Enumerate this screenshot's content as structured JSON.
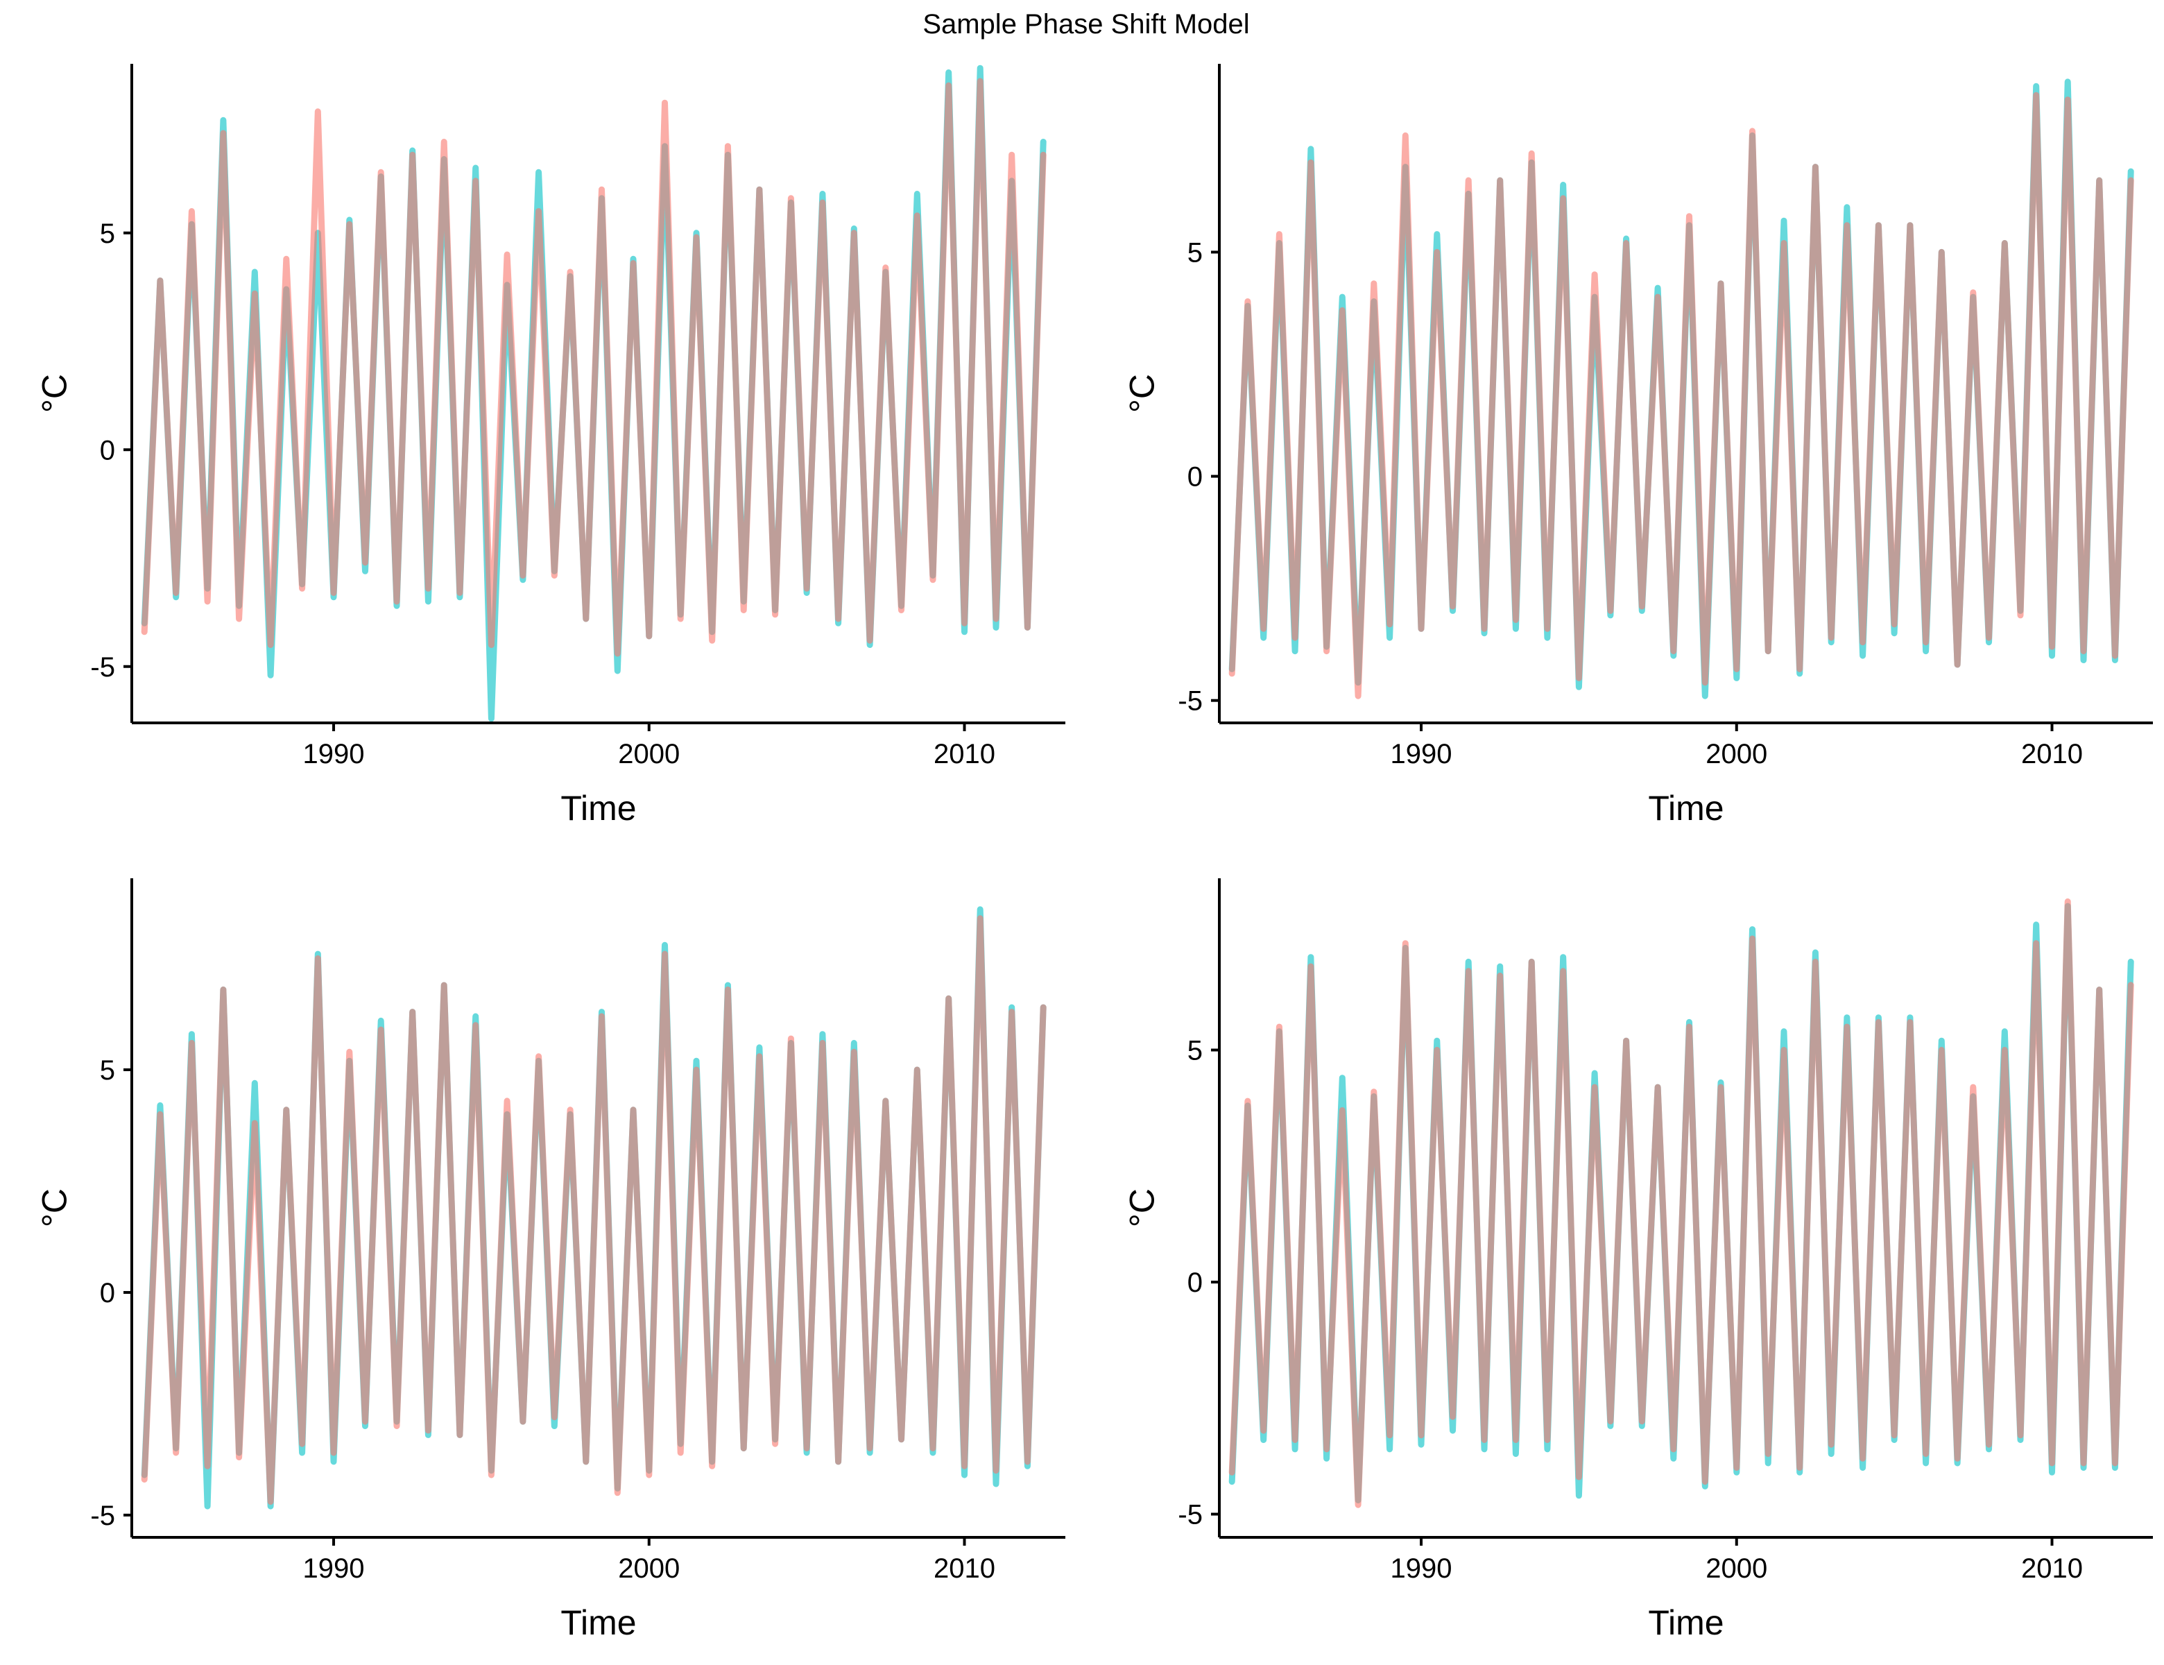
{
  "figure": {
    "title": "Sample Phase Shift Model"
  },
  "colors": {
    "observed": "#00BFC4",
    "model": "#F8766D"
  },
  "chart_data": [
    {
      "type": "line",
      "title": "",
      "xlabel": "Time",
      "ylabel": "°C",
      "xlim": [
        1983.6,
        2013.2
      ],
      "ylim": [
        -6.3,
        8.9
      ],
      "x_ticks": [
        1990,
        2000,
        2010
      ],
      "y_ticks": [
        -5,
        0,
        5
      ],
      "x_tick_labels": [
        "1990",
        "2000",
        "2010"
      ],
      "y_tick_labels": [
        "-5",
        "0",
        "5"
      ],
      "legend": "none",
      "grid": false,
      "x": [
        1984.0,
        1984.5,
        1985.0,
        1985.5,
        1986.0,
        1986.5,
        1987.0,
        1987.5,
        1988.0,
        1988.5,
        1989.0,
        1989.5,
        1990.0,
        1990.5,
        1991.0,
        1991.5,
        1992.0,
        1992.5,
        1993.0,
        1993.5,
        1994.0,
        1994.5,
        1995.0,
        1995.5,
        1996.0,
        1996.5,
        1997.0,
        1997.5,
        1998.0,
        1998.5,
        1999.0,
        1999.5,
        2000.0,
        2000.5,
        2001.0,
        2001.5,
        2002.0,
        2002.5,
        2003.0,
        2003.5,
        2004.0,
        2004.5,
        2005.0,
        2005.5,
        2006.0,
        2006.5,
        2007.0,
        2007.5,
        2008.0,
        2008.5,
        2009.0,
        2009.5,
        2010.0,
        2010.5,
        2011.0,
        2011.5,
        2012.0,
        2012.5
      ],
      "series": [
        {
          "values": [
            -4.0,
            3.9,
            -3.4,
            5.2,
            -3.2,
            7.6,
            -3.6,
            4.1,
            -5.2,
            3.7,
            -3.1,
            5.0,
            -3.4,
            5.3,
            -2.8,
            6.3,
            -3.6,
            6.9,
            -3.5,
            6.7,
            -3.4,
            6.5,
            -6.2,
            3.8,
            -3.0,
            6.4,
            -2.8,
            4.0,
            -3.9,
            5.8,
            -5.1,
            4.4,
            -4.3,
            7.0,
            -3.8,
            5.0,
            -4.2,
            6.8,
            -3.5,
            6.0,
            -3.7,
            5.7,
            -3.3,
            5.9,
            -4.0,
            5.1,
            -4.5,
            4.1,
            -3.6,
            5.9,
            -2.9,
            8.7,
            -4.2,
            8.8,
            -4.1,
            6.2,
            -4.1,
            7.1
          ]
        },
        {
          "values": [
            -4.2,
            3.9,
            -3.3,
            5.5,
            -3.5,
            7.3,
            -3.9,
            3.6,
            -4.5,
            4.4,
            -3.2,
            7.8,
            -3.3,
            5.2,
            -2.6,
            6.4,
            -3.5,
            6.8,
            -3.2,
            7.1,
            -3.3,
            6.2,
            -4.5,
            4.5,
            -2.9,
            5.5,
            -2.9,
            4.1,
            -3.9,
            6.0,
            -4.7,
            4.3,
            -4.3,
            8.0,
            -3.9,
            4.9,
            -4.4,
            7.0,
            -3.7,
            6.0,
            -3.8,
            5.8,
            -3.2,
            5.7,
            -3.9,
            5.0,
            -4.4,
            4.2,
            -3.7,
            5.4,
            -3.0,
            8.4,
            -4.0,
            8.5,
            -3.9,
            6.8,
            -4.1,
            6.8
          ]
        }
      ]
    },
    {
      "type": "line",
      "title": "",
      "xlabel": "Time",
      "ylabel": "°C",
      "xlim": [
        1983.6,
        2013.2
      ],
      "ylim": [
        -5.5,
        9.2
      ],
      "x_ticks": [
        1990,
        2000,
        2010
      ],
      "y_ticks": [
        -5,
        0,
        5
      ],
      "x_tick_labels": [
        "1990",
        "2000",
        "2010"
      ],
      "y_tick_labels": [
        "-5",
        "0",
        "5"
      ],
      "legend": "none",
      "grid": false,
      "x": [
        1984.0,
        1984.5,
        1985.0,
        1985.5,
        1986.0,
        1986.5,
        1987.0,
        1987.5,
        1988.0,
        1988.5,
        1989.0,
        1989.5,
        1990.0,
        1990.5,
        1991.0,
        1991.5,
        1992.0,
        1992.5,
        1993.0,
        1993.5,
        1994.0,
        1994.5,
        1995.0,
        1995.5,
        1996.0,
        1996.5,
        1997.0,
        1997.5,
        1998.0,
        1998.5,
        1999.0,
        1999.5,
        2000.0,
        2000.5,
        2001.0,
        2001.5,
        2002.0,
        2002.5,
        2003.0,
        2003.5,
        2004.0,
        2004.5,
        2005.0,
        2005.5,
        2006.0,
        2006.5,
        2007.0,
        2007.5,
        2008.0,
        2008.5,
        2009.0,
        2009.5,
        2010.0,
        2010.5,
        2011.0,
        2011.5,
        2012.0,
        2012.5
      ],
      "series": [
        {
          "values": [
            -4.3,
            3.8,
            -3.6,
            5.2,
            -3.9,
            7.3,
            -3.8,
            4.0,
            -4.6,
            3.9,
            -3.6,
            6.9,
            -3.4,
            5.4,
            -3.0,
            6.3,
            -3.5,
            6.6,
            -3.4,
            7.0,
            -3.6,
            6.5,
            -4.7,
            4.0,
            -3.1,
            5.3,
            -3.0,
            4.2,
            -4.0,
            5.6,
            -4.9,
            4.3,
            -4.5,
            7.6,
            -3.9,
            5.7,
            -4.4,
            6.9,
            -3.7,
            6.0,
            -4.0,
            5.6,
            -3.5,
            5.6,
            -3.9,
            5.0,
            -4.2,
            4.0,
            -3.7,
            5.2,
            -3.0,
            8.7,
            -4.0,
            8.8,
            -4.1,
            6.6,
            -4.1,
            6.8
          ]
        },
        {
          "values": [
            -4.4,
            3.9,
            -3.4,
            5.4,
            -3.6,
            7.0,
            -3.9,
            3.7,
            -4.9,
            4.3,
            -3.3,
            7.6,
            -3.4,
            5.0,
            -2.9,
            6.6,
            -3.4,
            6.6,
            -3.2,
            7.2,
            -3.4,
            6.2,
            -4.5,
            4.5,
            -3.0,
            5.2,
            -2.9,
            4.0,
            -3.9,
            5.8,
            -4.6,
            4.3,
            -4.3,
            7.7,
            -3.9,
            5.2,
            -4.3,
            6.9,
            -3.6,
            5.6,
            -3.7,
            5.6,
            -3.3,
            5.6,
            -3.7,
            5.0,
            -4.2,
            4.1,
            -3.6,
            5.2,
            -3.1,
            8.5,
            -3.8,
            8.4,
            -3.9,
            6.6,
            -4.0,
            6.6
          ]
        }
      ]
    },
    {
      "type": "line",
      "title": "",
      "xlabel": "Time",
      "ylabel": "°C",
      "xlim": [
        1983.6,
        2013.2
      ],
      "ylim": [
        -5.5,
        9.3
      ],
      "x_ticks": [
        1990,
        2000,
        2010
      ],
      "y_ticks": [
        -5,
        0,
        5
      ],
      "x_tick_labels": [
        "1990",
        "2000",
        "2010"
      ],
      "y_tick_labels": [
        "-5",
        "0",
        "5"
      ],
      "legend": "none",
      "grid": false,
      "x": [
        1984.0,
        1984.5,
        1985.0,
        1985.5,
        1986.0,
        1986.5,
        1987.0,
        1987.5,
        1988.0,
        1988.5,
        1989.0,
        1989.5,
        1990.0,
        1990.5,
        1991.0,
        1991.5,
        1992.0,
        1992.5,
        1993.0,
        1993.5,
        1994.0,
        1994.5,
        1995.0,
        1995.5,
        1996.0,
        1996.5,
        1997.0,
        1997.5,
        1998.0,
        1998.5,
        1999.0,
        1999.5,
        2000.0,
        2000.5,
        2001.0,
        2001.5,
        2002.0,
        2002.5,
        2003.0,
        2003.5,
        2004.0,
        2004.5,
        2005.0,
        2005.5,
        2006.0,
        2006.5,
        2007.0,
        2007.5,
        2008.0,
        2008.5,
        2009.0,
        2009.5,
        2010.0,
        2010.5,
        2011.0,
        2011.5,
        2012.0,
        2012.5
      ],
      "series": [
        {
          "values": [
            -4.1,
            4.2,
            -3.5,
            5.8,
            -4.8,
            6.8,
            -3.6,
            4.7,
            -4.8,
            4.1,
            -3.6,
            7.6,
            -3.8,
            5.2,
            -3.0,
            6.1,
            -2.9,
            6.3,
            -3.2,
            6.9,
            -3.2,
            6.2,
            -4.0,
            4.0,
            -2.9,
            5.2,
            -3.0,
            4.0,
            -3.8,
            6.3,
            -4.4,
            4.1,
            -4.0,
            7.8,
            -3.4,
            5.2,
            -3.8,
            6.9,
            -3.5,
            5.5,
            -3.3,
            5.6,
            -3.6,
            5.8,
            -3.8,
            5.6,
            -3.6,
            4.3,
            -3.3,
            5.0,
            -3.6,
            6.6,
            -4.1,
            8.6,
            -4.3,
            6.4,
            -3.9,
            6.4
          ]
        },
        {
          "values": [
            -4.2,
            4.0,
            -3.6,
            5.6,
            -3.9,
            6.8,
            -3.7,
            3.8,
            -4.7,
            4.1,
            -3.4,
            7.5,
            -3.6,
            5.4,
            -2.9,
            5.9,
            -3.0,
            6.3,
            -3.1,
            6.9,
            -3.2,
            6.0,
            -4.1,
            4.3,
            -2.9,
            5.3,
            -2.8,
            4.1,
            -3.8,
            6.2,
            -4.5,
            4.1,
            -4.1,
            7.6,
            -3.6,
            5.0,
            -3.9,
            6.8,
            -3.5,
            5.3,
            -3.4,
            5.7,
            -3.5,
            5.6,
            -3.8,
            5.4,
            -3.5,
            4.3,
            -3.3,
            5.0,
            -3.5,
            6.6,
            -3.9,
            8.4,
            -4.0,
            6.3,
            -3.8,
            6.4
          ]
        }
      ]
    },
    {
      "type": "line",
      "title": "",
      "xlabel": "Time",
      "ylabel": "°C",
      "xlim": [
        1983.6,
        2013.2
      ],
      "ylim": [
        -5.5,
        8.7
      ],
      "x_ticks": [
        1990,
        2000,
        2010
      ],
      "y_ticks": [
        -5,
        0,
        5
      ],
      "x_tick_labels": [
        "1990",
        "2000",
        "2010"
      ],
      "y_tick_labels": [
        "-5",
        "0",
        "5"
      ],
      "legend": "none",
      "grid": false,
      "x": [
        1984.0,
        1984.5,
        1985.0,
        1985.5,
        1986.0,
        1986.5,
        1987.0,
        1987.5,
        1988.0,
        1988.5,
        1989.0,
        1989.5,
        1990.0,
        1990.5,
        1991.0,
        1991.5,
        1992.0,
        1992.5,
        1993.0,
        1993.5,
        1994.0,
        1994.5,
        1995.0,
        1995.5,
        1996.0,
        1996.5,
        1997.0,
        1997.5,
        1998.0,
        1998.5,
        1999.0,
        1999.5,
        2000.0,
        2000.5,
        2001.0,
        2001.5,
        2002.0,
        2002.5,
        2003.0,
        2003.5,
        2004.0,
        2004.5,
        2005.0,
        2005.5,
        2006.0,
        2006.5,
        2007.0,
        2007.5,
        2008.0,
        2008.5,
        2009.0,
        2009.5,
        2010.0,
        2010.5,
        2011.0,
        2011.5,
        2012.0,
        2012.5
      ],
      "series": [
        {
          "values": [
            -4.3,
            3.8,
            -3.4,
            5.4,
            -3.6,
            7.0,
            -3.8,
            4.4,
            -4.7,
            4.0,
            -3.6,
            7.2,
            -3.5,
            5.2,
            -3.2,
            6.9,
            -3.6,
            6.8,
            -3.7,
            6.9,
            -3.6,
            7.0,
            -4.6,
            4.5,
            -3.1,
            5.2,
            -3.1,
            4.2,
            -3.8,
            5.6,
            -4.4,
            4.3,
            -4.1,
            7.6,
            -3.9,
            5.4,
            -4.1,
            7.1,
            -3.7,
            5.7,
            -4.0,
            5.7,
            -3.4,
            5.7,
            -3.9,
            5.2,
            -3.9,
            4.0,
            -3.6,
            5.4,
            -3.4,
            7.7,
            -4.1,
            8.1,
            -4.0,
            6.3,
            -4.0,
            6.9
          ]
        },
        {
          "values": [
            -4.1,
            3.9,
            -3.2,
            5.5,
            -3.4,
            6.8,
            -3.6,
            3.7,
            -4.8,
            4.1,
            -3.3,
            7.3,
            -3.3,
            5.0,
            -2.9,
            6.7,
            -3.4,
            6.6,
            -3.4,
            6.9,
            -3.4,
            6.7,
            -4.2,
            4.2,
            -3.0,
            5.2,
            -3.0,
            4.2,
            -3.6,
            5.5,
            -4.3,
            4.2,
            -4.0,
            7.4,
            -3.7,
            5.0,
            -4.0,
            6.9,
            -3.5,
            5.5,
            -3.8,
            5.6,
            -3.3,
            5.6,
            -3.7,
            5.0,
            -3.8,
            4.2,
            -3.5,
            5.0,
            -3.3,
            7.3,
            -3.9,
            8.2,
            -3.9,
            6.3,
            -3.9,
            6.4
          ]
        }
      ]
    }
  ]
}
